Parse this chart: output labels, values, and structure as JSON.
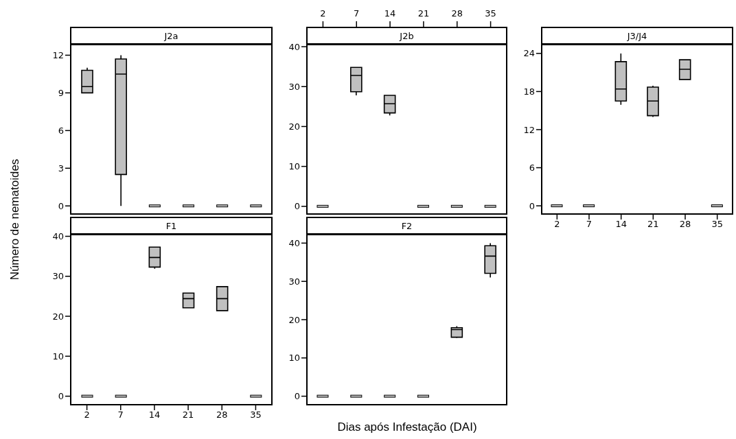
{
  "chart_data": [
    {
      "type": "box",
      "title": "J2a",
      "ylabel": "Número de nematoides",
      "categories": [
        "2",
        "7",
        "14",
        "21",
        "28",
        "35"
      ],
      "color": "#c0c0c0",
      "ylim": [
        -0.7,
        12.9
      ],
      "yticks": [
        0,
        3,
        6,
        9,
        12
      ],
      "tick_labels": "y",
      "boxes": [
        {
          "low": 9.0,
          "q1": 9.0,
          "median": 9.5,
          "q3": 10.8,
          "high": 11.0
        },
        {
          "low": 0,
          "q1": 2.5,
          "median": 10.5,
          "q3": 11.7,
          "high": 12.0
        },
        {
          "low": 0,
          "q1": 0,
          "median": 0,
          "q3": 0,
          "high": 0
        },
        {
          "low": 0,
          "q1": 0,
          "median": 0,
          "q3": 0,
          "high": 0
        },
        {
          "low": 0,
          "q1": 0,
          "median": 0,
          "q3": 0,
          "high": 0
        },
        {
          "low": 0,
          "q1": 0,
          "median": 0,
          "q3": 0,
          "high": 0
        }
      ]
    },
    {
      "type": "box",
      "title": "J2b",
      "categories": [
        "2",
        "7",
        "14",
        "21",
        "28",
        "35"
      ],
      "color": "#c0c0c0",
      "ylim": [
        -2.1,
        40.7
      ],
      "yticks": [
        0,
        10,
        20,
        30,
        40
      ],
      "boxes": [
        {
          "low": 0,
          "q1": 0,
          "median": 0,
          "q3": 0,
          "high": 0
        },
        {
          "low": 27.8,
          "q1": 28.7,
          "median": 32.8,
          "q3": 34.8,
          "high": 34.8
        },
        {
          "low": 22.8,
          "q1": 23.4,
          "median": 25.7,
          "q3": 27.8,
          "high": 27.8
        },
        {
          "low": 0,
          "q1": 0,
          "median": 0,
          "q3": 0,
          "high": 0
        },
        {
          "low": 0,
          "q1": 0,
          "median": 0,
          "q3": 0,
          "high": 0
        },
        {
          "low": 0,
          "q1": 0,
          "median": 0,
          "q3": 0,
          "high": 0
        }
      ]
    },
    {
      "type": "box",
      "title": "J3/J4",
      "categories": [
        "2",
        "7",
        "14",
        "21",
        "28",
        "35"
      ],
      "color": "#c0c0c0",
      "ylim": [
        -1.4,
        25.5
      ],
      "yticks": [
        0,
        6,
        12,
        18,
        24
      ],
      "boxes": [
        {
          "low": 0,
          "q1": 0,
          "median": 0,
          "q3": 0,
          "high": 0
        },
        {
          "low": 0,
          "q1": 0,
          "median": 0,
          "q3": 0,
          "high": 0
        },
        {
          "low": 15.9,
          "q1": 16.5,
          "median": 18.4,
          "q3": 22.7,
          "high": 24.0
        },
        {
          "low": 14.0,
          "q1": 14.2,
          "median": 16.5,
          "q3": 18.7,
          "high": 18.9
        },
        {
          "low": 19.9,
          "q1": 19.9,
          "median": 21.5,
          "q3": 23.0,
          "high": 23.0
        },
        {
          "low": 0,
          "q1": 0,
          "median": 0,
          "q3": 0,
          "high": 0
        }
      ]
    },
    {
      "type": "box",
      "title": "F1",
      "categories": [
        "2",
        "7",
        "14",
        "21",
        "28",
        "35"
      ],
      "color": "#c0c0c0",
      "ylim": [
        -2.3,
        40.6
      ],
      "yticks": [
        0,
        10,
        20,
        30,
        40
      ],
      "boxes": [
        {
          "low": 0,
          "q1": 0,
          "median": 0,
          "q3": 0,
          "high": 0
        },
        {
          "low": 0,
          "q1": 0,
          "median": 0,
          "q3": 0,
          "high": 0
        },
        {
          "low": 31.9,
          "q1": 32.3,
          "median": 34.7,
          "q3": 37.3,
          "high": 37.3
        },
        {
          "low": 22.1,
          "q1": 22.1,
          "median": 24.4,
          "q3": 25.8,
          "high": 25.8
        },
        {
          "low": 21.4,
          "q1": 21.4,
          "median": 24.4,
          "q3": 27.4,
          "high": 27.4
        },
        {
          "low": 0,
          "q1": 0,
          "median": 0,
          "q3": 0,
          "high": 0
        }
      ]
    },
    {
      "type": "box",
      "title": "F2",
      "xlabel": "Dias após Infestação (DAI)",
      "categories": [
        "2",
        "7",
        "14",
        "21",
        "28",
        "35"
      ],
      "color": "#c0c0c0",
      "ylim": [
        -2.4,
        42.4
      ],
      "yticks": [
        0,
        10,
        20,
        30,
        40
      ],
      "tick_labels": "y",
      "boxes": [
        {
          "low": 0,
          "q1": 0,
          "median": 0,
          "q3": 0,
          "high": 0
        },
        {
          "low": 0,
          "q1": 0,
          "median": 0,
          "q3": 0,
          "high": 0
        },
        {
          "low": 0,
          "q1": 0,
          "median": 0,
          "q3": 0,
          "high": 0
        },
        {
          "low": 0,
          "q1": 0,
          "median": 0,
          "q3": 0,
          "high": 0
        },
        {
          "low": 15.2,
          "q1": 15.4,
          "median": 17.4,
          "q3": 17.9,
          "high": 18.3
        },
        {
          "low": 31.0,
          "q1": 32.1,
          "median": 36.6,
          "q3": 39.3,
          "high": 40.0
        }
      ]
    }
  ]
}
